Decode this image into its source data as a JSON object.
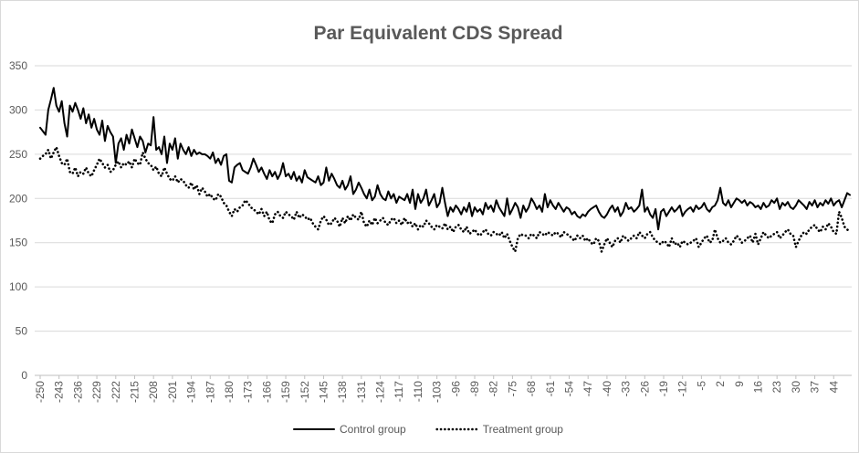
{
  "chart_data": {
    "type": "line",
    "title": "Par Equivalent CDS Spread",
    "x": [
      -250,
      -249,
      -248,
      -247,
      -246,
      -245,
      -244,
      -243,
      -242,
      -241,
      -240,
      -239,
      -238,
      -237,
      -236,
      -235,
      -234,
      -233,
      -232,
      -231,
      -230,
      -229,
      -228,
      -227,
      -226,
      -225,
      -224,
      -223,
      -222,
      -221,
      -220,
      -219,
      -218,
      -217,
      -216,
      -215,
      -214,
      -213,
      -212,
      -211,
      -210,
      -209,
      -208,
      -207,
      -206,
      -205,
      -204,
      -203,
      -202,
      -201,
      -200,
      -199,
      -198,
      -197,
      -196,
      -195,
      -194,
      -193,
      -192,
      -191,
      -190,
      -189,
      -188,
      -187,
      -186,
      -185,
      -184,
      -183,
      -182,
      -181,
      -180,
      -179,
      -178,
      -177,
      -176,
      -175,
      -174,
      -173,
      -172,
      -171,
      -170,
      -169,
      -168,
      -167,
      -166,
      -165,
      -164,
      -163,
      -162,
      -161,
      -160,
      -159,
      -158,
      -157,
      -156,
      -155,
      -154,
      -153,
      -152,
      -151,
      -150,
      -149,
      -148,
      -147,
      -146,
      -145,
      -144,
      -143,
      -142,
      -141,
      -140,
      -139,
      -138,
      -137,
      -136,
      -135,
      -134,
      -133,
      -132,
      -131,
      -130,
      -129,
      -128,
      -127,
      -126,
      -125,
      -124,
      -123,
      -122,
      -121,
      -120,
      -119,
      -118,
      -117,
      -116,
      -115,
      -114,
      -113,
      -112,
      -111,
      -110,
      -109,
      -108,
      -107,
      -106,
      -105,
      -104,
      -103,
      -102,
      -101,
      -100,
      -99,
      -98,
      -97,
      -96,
      -95,
      -94,
      -93,
      -92,
      -91,
      -90,
      -89,
      -88,
      -87,
      -86,
      -85,
      -84,
      -83,
      -82,
      -81,
      -80,
      -79,
      -78,
      -77,
      -76,
      -75,
      -74,
      -73,
      -72,
      -71,
      -70,
      -69,
      -68,
      -67,
      -66,
      -65,
      -64,
      -63,
      -62,
      -61,
      -60,
      -59,
      -58,
      -57,
      -56,
      -55,
      -54,
      -53,
      -52,
      -51,
      -50,
      -49,
      -48,
      -47,
      -46,
      -45,
      -44,
      -43,
      -42,
      -41,
      -40,
      -39,
      -38,
      -37,
      -36,
      -35,
      -34,
      -33,
      -32,
      -31,
      -30,
      -29,
      -28,
      -27,
      -26,
      -25,
      -24,
      -23,
      -22,
      -21,
      -20,
      -19,
      -18,
      -17,
      -16,
      -15,
      -14,
      -13,
      -12,
      -11,
      -10,
      -9,
      -8,
      -7,
      -6,
      -5,
      -4,
      -3,
      -2,
      -1,
      0,
      1,
      2,
      3,
      4,
      5,
      6,
      7,
      8,
      9,
      10,
      11,
      12,
      13,
      14,
      15,
      16,
      17,
      18,
      19,
      20,
      21,
      22,
      23,
      24,
      25,
      26,
      27,
      28,
      29,
      30,
      31,
      32,
      33,
      34,
      35,
      36,
      37,
      38,
      39,
      40,
      41,
      42,
      43,
      44,
      45,
      46,
      47,
      48,
      49,
      50
    ],
    "series": [
      {
        "name": "Control group",
        "color": "#000000",
        "style": "solid",
        "values": [
          280,
          276,
          272,
          300,
          312,
          325,
          305,
          298,
          310,
          285,
          270,
          305,
          298,
          308,
          300,
          290,
          302,
          285,
          295,
          280,
          290,
          278,
          272,
          288,
          265,
          282,
          275,
          270,
          240,
          262,
          268,
          255,
          272,
          262,
          278,
          268,
          258,
          270,
          265,
          252,
          262,
          260,
          292,
          255,
          258,
          250,
          270,
          240,
          262,
          255,
          268,
          245,
          262,
          255,
          250,
          258,
          248,
          255,
          250,
          252,
          250,
          250,
          248,
          245,
          252,
          240,
          245,
          238,
          248,
          250,
          220,
          218,
          235,
          238,
          240,
          232,
          230,
          228,
          235,
          245,
          238,
          230,
          235,
          228,
          222,
          232,
          225,
          230,
          222,
          228,
          240,
          225,
          228,
          222,
          230,
          220,
          225,
          218,
          232,
          224,
          222,
          220,
          218,
          225,
          215,
          218,
          235,
          220,
          228,
          222,
          215,
          212,
          220,
          210,
          215,
          225,
          205,
          210,
          218,
          212,
          205,
          200,
          210,
          198,
          202,
          215,
          205,
          200,
          198,
          208,
          200,
          205,
          195,
          202,
          200,
          198,
          205,
          195,
          210,
          188,
          205,
          195,
          200,
          210,
          192,
          198,
          205,
          190,
          195,
          212,
          195,
          180,
          190,
          185,
          192,
          188,
          182,
          190,
          185,
          195,
          180,
          190,
          185,
          188,
          182,
          195,
          188,
          192,
          185,
          198,
          190,
          185,
          180,
          200,
          182,
          188,
          195,
          190,
          178,
          192,
          185,
          190,
          200,
          195,
          188,
          192,
          185,
          205,
          190,
          198,
          192,
          188,
          195,
          190,
          185,
          190,
          188,
          182,
          185,
          180,
          178,
          182,
          180,
          185,
          188,
          190,
          192,
          185,
          180,
          178,
          182,
          188,
          192,
          185,
          190,
          180,
          185,
          195,
          188,
          190,
          185,
          188,
          192,
          210,
          185,
          190,
          182,
          178,
          188,
          165,
          185,
          188,
          180,
          185,
          190,
          185,
          188,
          192,
          180,
          185,
          188,
          190,
          185,
          192,
          188,
          190,
          195,
          188,
          185,
          190,
          192,
          198,
          212,
          195,
          192,
          198,
          190,
          195,
          200,
          198,
          195,
          198,
          192,
          196,
          194,
          190,
          192,
          188,
          195,
          190,
          192,
          198,
          195,
          200,
          188,
          195,
          192,
          196,
          190,
          188,
          192,
          198,
          195,
          192,
          188,
          196,
          192,
          198,
          190,
          195,
          192,
          198,
          194,
          200,
          192,
          196,
          198,
          190,
          198,
          206,
          204
        ]
      },
      {
        "name": "Treatment group",
        "color": "#000000",
        "style": "dotted",
        "values": [
          245,
          248,
          250,
          255,
          245,
          252,
          258,
          248,
          240,
          238,
          245,
          230,
          228,
          235,
          225,
          230,
          228,
          235,
          228,
          225,
          232,
          238,
          245,
          240,
          235,
          238,
          230,
          232,
          238,
          242,
          235,
          240,
          238,
          242,
          235,
          245,
          240,
          238,
          252,
          245,
          240,
          238,
          232,
          236,
          228,
          225,
          235,
          228,
          222,
          220,
          225,
          218,
          222,
          220,
          215,
          212,
          218,
          210,
          215,
          205,
          212,
          208,
          202,
          205,
          200,
          198,
          205,
          202,
          195,
          192,
          185,
          180,
          188,
          185,
          190,
          192,
          198,
          195,
          190,
          188,
          185,
          182,
          188,
          180,
          185,
          175,
          172,
          182,
          185,
          180,
          178,
          185,
          182,
          180,
          176,
          185,
          178,
          182,
          180,
          176,
          178,
          172,
          168,
          165,
          175,
          180,
          176,
          170,
          172,
          178,
          175,
          168,
          178,
          172,
          180,
          175,
          182,
          178,
          176,
          185,
          172,
          168,
          175,
          170,
          178,
          172,
          175,
          178,
          172,
          170,
          176,
          178,
          172,
          175,
          170,
          178,
          172,
          174,
          168,
          172,
          165,
          170,
          168,
          175,
          172,
          168,
          165,
          170,
          168,
          166,
          172,
          165,
          168,
          162,
          168,
          170,
          165,
          162,
          168,
          160,
          162,
          165,
          160,
          158,
          162,
          165,
          160,
          158,
          162,
          160,
          158,
          162,
          155,
          160,
          152,
          145,
          140,
          155,
          160,
          158,
          158,
          155,
          160,
          158,
          155,
          162,
          160,
          158,
          162,
          160,
          158,
          162,
          160,
          156,
          162,
          160,
          158,
          155,
          152,
          158,
          155,
          158,
          152,
          155,
          150,
          148,
          155,
          152,
          140,
          148,
          155,
          150,
          145,
          152,
          155,
          150,
          158,
          155,
          152,
          155,
          158,
          155,
          162,
          158,
          155,
          160,
          162,
          156,
          152,
          150,
          148,
          152,
          150,
          145,
          155,
          148,
          150,
          145,
          152,
          150,
          148,
          150,
          152,
          155,
          145,
          150,
          155,
          158,
          150,
          152,
          165,
          155,
          150,
          152,
          155,
          150,
          148,
          152,
          158,
          155,
          150,
          152,
          155,
          158,
          150,
          160,
          148,
          155,
          162,
          158,
          155,
          158,
          160,
          162,
          155,
          158,
          162,
          165,
          160,
          158,
          145,
          152,
          158,
          162,
          160,
          165,
          168,
          170,
          165,
          162,
          168,
          165,
          172,
          168,
          162,
          160,
          185,
          178,
          168,
          165,
          162
        ]
      }
    ],
    "xlim": [
      -250,
      50
    ],
    "xticks": [
      -250,
      -243,
      -236,
      -229,
      -222,
      -215,
      -208,
      -201,
      -194,
      -187,
      -180,
      -173,
      -166,
      -159,
      -152,
      -145,
      -138,
      -131,
      -124,
      -117,
      -110,
      -103,
      -96,
      -89,
      -82,
      -75,
      -68,
      -61,
      -54,
      -47,
      -40,
      -33,
      -26,
      -19,
      -12,
      -5,
      2,
      9,
      16,
      23,
      30,
      37,
      44
    ],
    "ylim": [
      0,
      350
    ],
    "yticks": [
      0,
      50,
      100,
      150,
      200,
      250,
      300,
      350
    ],
    "grid": true,
    "legend": "bottom"
  }
}
